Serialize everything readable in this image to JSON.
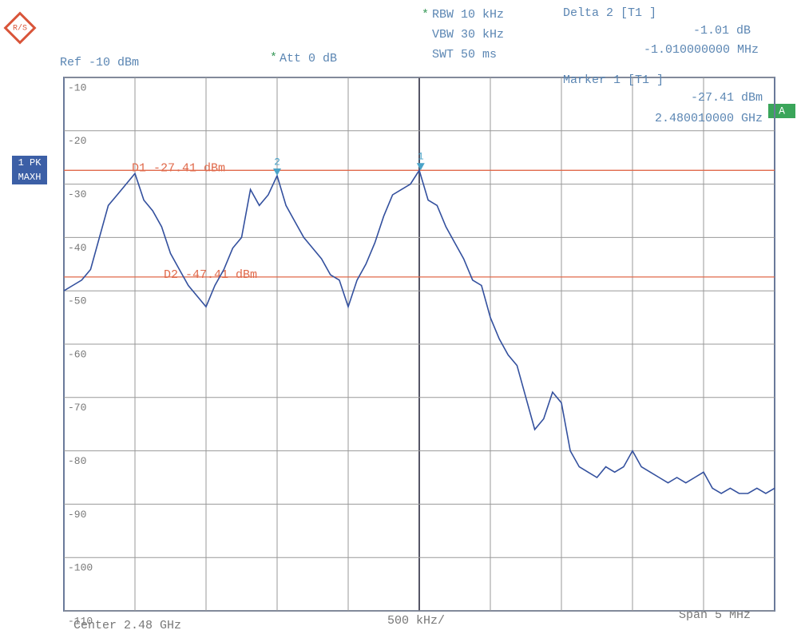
{
  "chart_data": {
    "type": "line",
    "color": "#33509e",
    "x": [
      2.4775,
      2.4775625,
      2.477625,
      2.4776875,
      2.47775,
      2.4778125,
      2.477875,
      2.4779375,
      2.478,
      2.4780625,
      2.478125,
      2.4781875,
      2.47825,
      2.4783125,
      2.478375,
      2.4784375,
      2.4785,
      2.4785625,
      2.478625,
      2.4786875,
      2.47875,
      2.4788125,
      2.478875,
      2.4789375,
      2.479,
      2.4790625,
      2.479125,
      2.4791875,
      2.47925,
      2.4793125,
      2.479375,
      2.4794375,
      2.4795,
      2.4795625,
      2.479625,
      2.4796875,
      2.47975,
      2.4798125,
      2.479875,
      2.4799375,
      2.48,
      2.4800625,
      2.480125,
      2.4801875,
      2.48025,
      2.4803125,
      2.480375,
      2.4804375,
      2.4805,
      2.4805625,
      2.480625,
      2.4806875,
      2.48075,
      2.4808125,
      2.480875,
      2.4809375,
      2.481,
      2.4810625,
      2.481125,
      2.4811875,
      2.48125,
      2.4813125,
      2.481375,
      2.4814375,
      2.4815,
      2.4815625,
      2.481625,
      2.4816875,
      2.48175,
      2.4818125,
      2.481875,
      2.4819375,
      2.482,
      2.4820625,
      2.482125,
      2.4821875,
      2.48225,
      2.4823125,
      2.482375,
      2.4824375,
      2.4825
    ],
    "values": [
      -50,
      -49,
      -48,
      -46,
      -40,
      -34,
      -32,
      -30,
      -28,
      -33,
      -35,
      -38,
      -43,
      -46,
      -49,
      -51,
      -53,
      -49,
      -46,
      -42,
      -40,
      -31,
      -34,
      -32,
      -28.42,
      -34,
      -37,
      -40,
      -42,
      -44,
      -47,
      -48,
      -53,
      -48,
      -45,
      -41,
      -36,
      -32,
      -31,
      -30,
      -27.41,
      -33,
      -34,
      -38,
      -41,
      -44,
      -48,
      -49,
      -55,
      -59,
      -62,
      -64,
      -70,
      -76,
      -74,
      -69,
      -71,
      -80,
      -83,
      -84,
      -85,
      -83,
      -84,
      -83,
      -80,
      -83,
      -84,
      -85,
      -86,
      -85,
      -86,
      -85,
      -84,
      -87,
      -88,
      -87,
      -88,
      -88,
      -87,
      -88,
      -87
    ],
    "xlim": [
      2.4775,
      2.4825
    ],
    "ylim": [
      -110,
      -10
    ],
    "yticks": [
      -10,
      -20,
      -30,
      -40,
      -50,
      -60,
      -70,
      -80,
      -90,
      -100,
      -110
    ],
    "grid": true,
    "display_lines": [
      {
        "label": "D1 -27.41 dBm",
        "value": -27.41,
        "color": "#e0694a"
      },
      {
        "label": "D2 -47.41 dBm",
        "value": -47.41,
        "color": "#e0694a"
      }
    ],
    "markers": [
      {
        "label": "1",
        "x": 2.48001,
        "value": -27.41
      },
      {
        "label": "2",
        "x": 2.479,
        "value": -28.42
      }
    ],
    "settings": {
      "ref": "Ref -10 dBm",
      "att": "Att  0 dB",
      "rbw": "RBW 10 kHz",
      "vbw": "VBW 30 kHz",
      "swt": "SWT 50 ms"
    },
    "readout": {
      "delta_title": "Delta 2 [T1 ]",
      "delta_level": "-1.01 dB",
      "delta_freq": "-1.010000000 MHz",
      "marker_title": "Marker 1 [T1 ]",
      "marker_level": "-27.41 dBm",
      "marker_freq": "2.480010000 GHz"
    },
    "trace_label": [
      "1 PK",
      "MAXH"
    ],
    "screen_label": "A",
    "footer": {
      "center": "Center 2.48 GHz",
      "per_div": "500 kHz/",
      "span": "Span 5 MHz"
    }
  }
}
